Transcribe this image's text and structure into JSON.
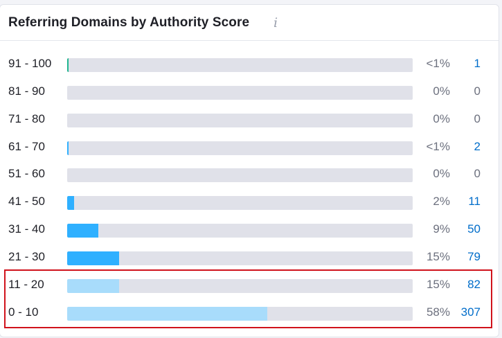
{
  "widget": {
    "title": "Referring Domains by Authority Score",
    "info_icon": "info-icon",
    "info_glyph": "i"
  },
  "colors": {
    "top_band": "#1fb58f",
    "mid_band": "#2fb0ff",
    "low_band": "#a8dcfb",
    "track": "#e0e1e9",
    "highlight": "#d0121b",
    "link": "#006dca"
  },
  "rows": [
    {
      "range": "91 - 100",
      "percent_label": "<1%",
      "count": "1",
      "fill_fraction": 0.004,
      "band": "top_band",
      "link": true
    },
    {
      "range": "81 - 90",
      "percent_label": "0%",
      "count": "0",
      "fill_fraction": 0,
      "band": "mid_band",
      "link": false
    },
    {
      "range": "71 - 80",
      "percent_label": "0%",
      "count": "0",
      "fill_fraction": 0,
      "band": "mid_band",
      "link": false
    },
    {
      "range": "61 - 70",
      "percent_label": "<1%",
      "count": "2",
      "fill_fraction": 0.004,
      "band": "mid_band",
      "link": true
    },
    {
      "range": "51 - 60",
      "percent_label": "0%",
      "count": "0",
      "fill_fraction": 0,
      "band": "mid_band",
      "link": false
    },
    {
      "range": "41 - 50",
      "percent_label": "2%",
      "count": "11",
      "fill_fraction": 0.02,
      "band": "mid_band",
      "link": true
    },
    {
      "range": "31 - 40",
      "percent_label": "9%",
      "count": "50",
      "fill_fraction": 0.09,
      "band": "mid_band",
      "link": true
    },
    {
      "range": "21 - 30",
      "percent_label": "15%",
      "count": "79",
      "fill_fraction": 0.15,
      "band": "mid_band",
      "link": true
    },
    {
      "range": "11 - 20",
      "percent_label": "15%",
      "count": "82",
      "fill_fraction": 0.15,
      "band": "low_band",
      "link": true
    },
    {
      "range": "0 - 10",
      "percent_label": "58%",
      "count": "307",
      "fill_fraction": 0.58,
      "band": "low_band",
      "link": true
    }
  ]
}
